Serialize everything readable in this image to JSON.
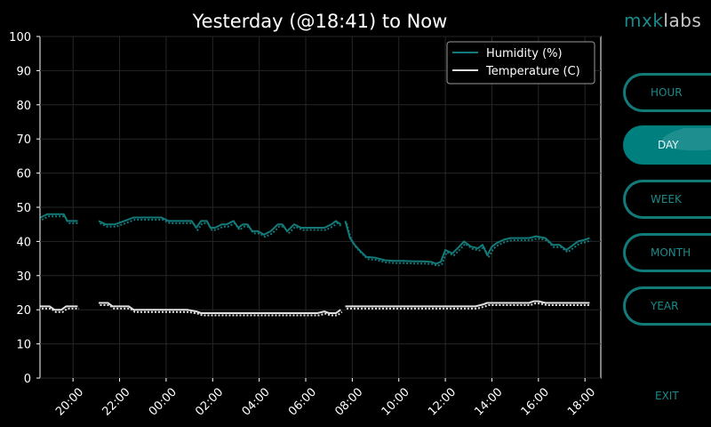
{
  "brand": {
    "part1": "mxk",
    "part2": "labs"
  },
  "nav": [
    {
      "label": "HOUR",
      "active": false
    },
    {
      "label": "DAY",
      "active": true
    },
    {
      "label": "WEEK",
      "active": false
    },
    {
      "label": "MONTH",
      "active": false
    },
    {
      "label": "YEAR",
      "active": false
    }
  ],
  "exit_label": "EXIT",
  "chart_data": {
    "type": "line",
    "title": "Yesterday (@18:41) to Now",
    "xlabel": "",
    "ylabel": "",
    "xlim": [
      18.58,
      42.68
    ],
    "ylim": [
      0,
      100
    ],
    "yticks": [
      0,
      10,
      20,
      30,
      40,
      50,
      60,
      70,
      80,
      90,
      100
    ],
    "xticks": [
      {
        "hour": 20,
        "label": "20:00"
      },
      {
        "hour": 22,
        "label": "22:00"
      },
      {
        "hour": 24,
        "label": "00:00"
      },
      {
        "hour": 26,
        "label": "02:00"
      },
      {
        "hour": 28,
        "label": "04:00"
      },
      {
        "hour": 30,
        "label": "06:00"
      },
      {
        "hour": 32,
        "label": "08:00"
      },
      {
        "hour": 34,
        "label": "10:00"
      },
      {
        "hour": 36,
        "label": "12:00"
      },
      {
        "hour": 38,
        "label": "14:00"
      },
      {
        "hour": 40,
        "label": "16:00"
      },
      {
        "hour": 42,
        "label": "18:00"
      }
    ],
    "x_unit_note": "hours from midnight yesterday (24 = 00:00 today)",
    "grid": true,
    "legend_position": "top-right",
    "legend": [
      {
        "name": "Humidity (%)",
        "color": "#137a7a"
      },
      {
        "name": "Temperature (C)",
        "color": "#e0e0e0"
      }
    ],
    "series": [
      {
        "name": "Humidity (%)",
        "color": "#137a7a",
        "segments": [
          [
            [
              18.6,
              47
            ],
            [
              18.9,
              48
            ],
            [
              19.3,
              48
            ],
            [
              19.6,
              48
            ],
            [
              19.75,
              46
            ],
            [
              20.2,
              46
            ]
          ],
          [
            [
              21.1,
              46
            ],
            [
              21.4,
              45
            ],
            [
              21.8,
              45
            ],
            [
              22.2,
              46
            ],
            [
              22.6,
              47
            ],
            [
              23.0,
              47
            ],
            [
              23.5,
              47
            ],
            [
              23.8,
              47
            ],
            [
              24.1,
              46
            ],
            [
              24.5,
              46
            ],
            [
              24.9,
              46
            ],
            [
              25.1,
              46
            ],
            [
              25.3,
              44
            ],
            [
              25.5,
              46
            ],
            [
              25.75,
              46
            ],
            [
              25.9,
              44
            ],
            [
              26.1,
              44
            ],
            [
              26.4,
              45
            ],
            [
              26.6,
              45
            ],
            [
              26.9,
              46
            ],
            [
              27.1,
              44
            ],
            [
              27.3,
              45
            ],
            [
              27.5,
              45
            ],
            [
              27.7,
              43
            ],
            [
              27.95,
              43
            ],
            [
              28.2,
              42
            ],
            [
              28.5,
              43
            ],
            [
              28.8,
              45
            ],
            [
              29.0,
              45
            ],
            [
              29.2,
              43
            ],
            [
              29.5,
              45
            ],
            [
              29.8,
              44
            ],
            [
              30.1,
              44
            ],
            [
              30.5,
              44
            ],
            [
              30.8,
              44
            ],
            [
              31.1,
              45
            ],
            [
              31.3,
              46
            ],
            [
              31.5,
              45
            ]
          ],
          [
            [
              31.7,
              46
            ],
            [
              31.9,
              41
            ],
            [
              32.1,
              39
            ],
            [
              32.3,
              37.5
            ],
            [
              32.6,
              35.5
            ],
            [
              33.0,
              35.2
            ],
            [
              33.4,
              34.5
            ],
            [
              33.8,
              34.3
            ],
            [
              34.2,
              34.3
            ],
            [
              34.6,
              34.2
            ],
            [
              35.0,
              34.2
            ],
            [
              35.4,
              34
            ],
            [
              35.6,
              33.5
            ],
            [
              35.8,
              34
            ],
            [
              36.0,
              37.5
            ],
            [
              36.3,
              36.5
            ],
            [
              36.6,
              38.5
            ],
            [
              36.8,
              40
            ],
            [
              37.1,
              38.5
            ],
            [
              37.4,
              38
            ],
            [
              37.6,
              39
            ],
            [
              37.8,
              36
            ],
            [
              38.0,
              38.5
            ],
            [
              38.2,
              39.5
            ],
            [
              38.5,
              40.5
            ],
            [
              38.8,
              41
            ],
            [
              39.2,
              41
            ],
            [
              39.6,
              41
            ],
            [
              39.9,
              41.5
            ],
            [
              40.3,
              41
            ],
            [
              40.6,
              39
            ],
            [
              40.9,
              39
            ],
            [
              41.2,
              37.5
            ],
            [
              41.4,
              38.5
            ],
            [
              41.7,
              40
            ],
            [
              42.0,
              40.5
            ],
            [
              42.2,
              41
            ]
          ]
        ]
      },
      {
        "name": "Temperature (C)",
        "color": "#e0e0e0",
        "segments": [
          [
            [
              18.6,
              21
            ],
            [
              19.0,
              21
            ],
            [
              19.2,
              20
            ],
            [
              19.5,
              20
            ],
            [
              19.7,
              21
            ],
            [
              20.2,
              21
            ]
          ],
          [
            [
              21.1,
              22
            ],
            [
              21.5,
              22
            ],
            [
              21.7,
              21
            ],
            [
              22.0,
              21
            ],
            [
              22.4,
              21
            ],
            [
              22.6,
              20
            ],
            [
              23.0,
              20
            ],
            [
              23.5,
              20
            ],
            [
              24.0,
              20
            ],
            [
              24.5,
              20
            ],
            [
              24.9,
              20
            ],
            [
              25.3,
              19.5
            ],
            [
              25.5,
              19
            ],
            [
              26.0,
              19
            ],
            [
              26.5,
              19
            ],
            [
              27.0,
              19
            ],
            [
              27.5,
              19
            ],
            [
              28.0,
              19
            ],
            [
              28.5,
              19
            ],
            [
              29.0,
              19
            ],
            [
              29.5,
              19
            ],
            [
              30.0,
              19
            ],
            [
              30.5,
              19
            ],
            [
              30.8,
              19.5
            ],
            [
              31.0,
              19
            ],
            [
              31.3,
              19
            ],
            [
              31.4,
              19.5
            ],
            [
              31.5,
              20
            ]
          ],
          [
            [
              31.7,
              21
            ],
            [
              32.5,
              21
            ],
            [
              33.5,
              21
            ],
            [
              34.5,
              21
            ],
            [
              35.5,
              21
            ],
            [
              36.5,
              21
            ],
            [
              37.3,
              21
            ],
            [
              37.6,
              21.5
            ],
            [
              37.8,
              22
            ],
            [
              38.5,
              22
            ],
            [
              39.2,
              22
            ],
            [
              39.6,
              22
            ],
            [
              39.8,
              22.5
            ],
            [
              40.0,
              22.5
            ],
            [
              40.3,
              22
            ],
            [
              41.0,
              22
            ],
            [
              41.5,
              22
            ],
            [
              42.2,
              22
            ]
          ]
        ]
      }
    ]
  }
}
